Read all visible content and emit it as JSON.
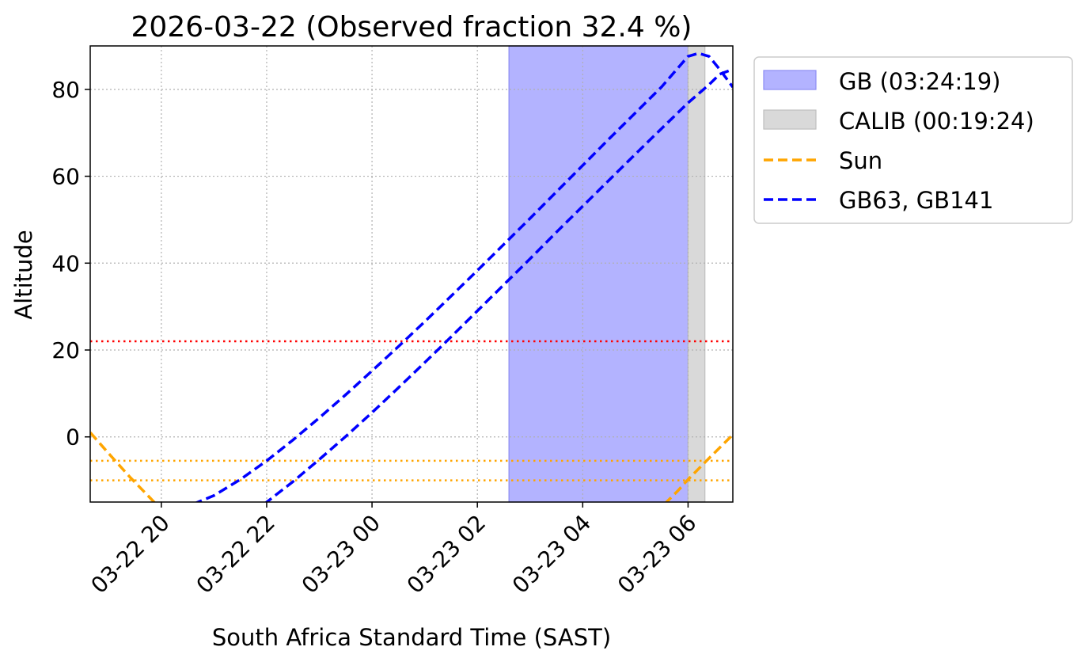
{
  "chart_data": {
    "type": "line",
    "title": "2026-03-22 (Observed fraction 32.4 %)",
    "xlabel": "South Africa Standard Time (SAST)",
    "ylabel": "Altitude",
    "xlim_hours": [
      18.65,
      30.85
    ],
    "ylim": [
      -15,
      90
    ],
    "grid": true,
    "legend_position": "outside-top-right",
    "x_ticks": [
      {
        "hour": 20,
        "label": "03-22 20"
      },
      {
        "hour": 22,
        "label": "03-22 22"
      },
      {
        "hour": 24,
        "label": "03-23 00"
      },
      {
        "hour": 26,
        "label": "03-23 02"
      },
      {
        "hour": 28,
        "label": "03-23 04"
      },
      {
        "hour": 30,
        "label": "03-23 06"
      }
    ],
    "y_ticks": [
      0,
      20,
      40,
      60,
      80
    ],
    "spans": [
      {
        "name": "GB (03:24:19)",
        "start_hour": 26.6,
        "end_hour": 30.0,
        "color": "#b3b3ff",
        "edge": "#8c8cf2"
      },
      {
        "name": "CALIB (00:19:24)",
        "start_hour": 30.0,
        "end_hour": 30.32,
        "color": "#d9d9d9",
        "edge": "#bfbfbf"
      }
    ],
    "hlines": [
      {
        "y": 22,
        "color": "#ff0000",
        "style": "dotted"
      },
      {
        "y": -5.5,
        "color": "#ffa500",
        "style": "dotted"
      },
      {
        "y": -10,
        "color": "#ffa500",
        "style": "dotted"
      }
    ],
    "series": [
      {
        "name": "Sun",
        "color": "#ffa500",
        "style": "dashed",
        "segments": [
          [
            [
              18.65,
              1
            ],
            [
              19.0,
              -3.8
            ],
            [
              19.4,
              -9.2
            ],
            [
              19.8,
              -14.2
            ],
            [
              19.9,
              -15.5
            ]
          ],
          [
            [
              29.55,
              -15.5
            ],
            [
              29.8,
              -12.5
            ],
            [
              30.0,
              -9.8
            ],
            [
              30.4,
              -4.9
            ],
            [
              30.85,
              0.5
            ]
          ]
        ]
      },
      {
        "name": "GB63",
        "color": "#0000ff",
        "style": "dashed",
        "segments": [
          [
            [
              20.6,
              -15.5
            ],
            [
              21.0,
              -13.5
            ],
            [
              21.5,
              -9.8
            ],
            [
              22.0,
              -5.5
            ],
            [
              22.5,
              -0.7
            ],
            [
              23.0,
              4.4
            ],
            [
              23.5,
              9.7
            ],
            [
              24.0,
              15.2
            ],
            [
              24.5,
              20.8
            ],
            [
              25.0,
              26.5
            ],
            [
              25.5,
              32.4
            ],
            [
              26.0,
              38.3
            ],
            [
              26.5,
              44.3
            ],
            [
              27.0,
              50.3
            ],
            [
              27.5,
              56.4
            ],
            [
              28.0,
              62.5
            ],
            [
              28.5,
              68.6
            ],
            [
              29.0,
              74.6
            ],
            [
              29.5,
              80.6
            ],
            [
              29.8,
              84.8
            ],
            [
              30.0,
              87.6
            ],
            [
              30.2,
              88.3
            ],
            [
              30.4,
              87.6
            ],
            [
              30.6,
              84.6
            ],
            [
              30.85,
              80.5
            ]
          ]
        ]
      },
      {
        "name": "GB141",
        "color": "#0000ff",
        "style": "dashed",
        "segments": [
          [
            [
              21.95,
              -15.5
            ],
            [
              22.5,
              -10.3
            ],
            [
              23.0,
              -5.2
            ],
            [
              23.5,
              0.1
            ],
            [
              24.0,
              5.6
            ],
            [
              24.5,
              11.3
            ],
            [
              25.0,
              17.1
            ],
            [
              25.5,
              23.0
            ],
            [
              26.0,
              29.0
            ],
            [
              26.5,
              35.0
            ],
            [
              27.0,
              41.0
            ],
            [
              27.5,
              47.1
            ],
            [
              28.0,
              53.1
            ],
            [
              28.5,
              59.1
            ],
            [
              29.0,
              65.1
            ],
            [
              29.5,
              71.0
            ],
            [
              30.0,
              76.9
            ],
            [
              30.4,
              81.1
            ],
            [
              30.6,
              83.5
            ],
            [
              30.8,
              84.4
            ],
            [
              30.85,
              84.5
            ]
          ]
        ]
      }
    ],
    "legend": [
      {
        "kind": "patch",
        "label": "GB (03:24:19)",
        "color": "#b3b3ff",
        "edge": "#8c8cf2"
      },
      {
        "kind": "patch",
        "label": "CALIB (00:19:24)",
        "color": "#d9d9d9",
        "edge": "#bfbfbf"
      },
      {
        "kind": "line",
        "label": "Sun",
        "color": "#ffa500"
      },
      {
        "kind": "line",
        "label": "GB63, GB141",
        "color": "#0000ff"
      }
    ]
  }
}
